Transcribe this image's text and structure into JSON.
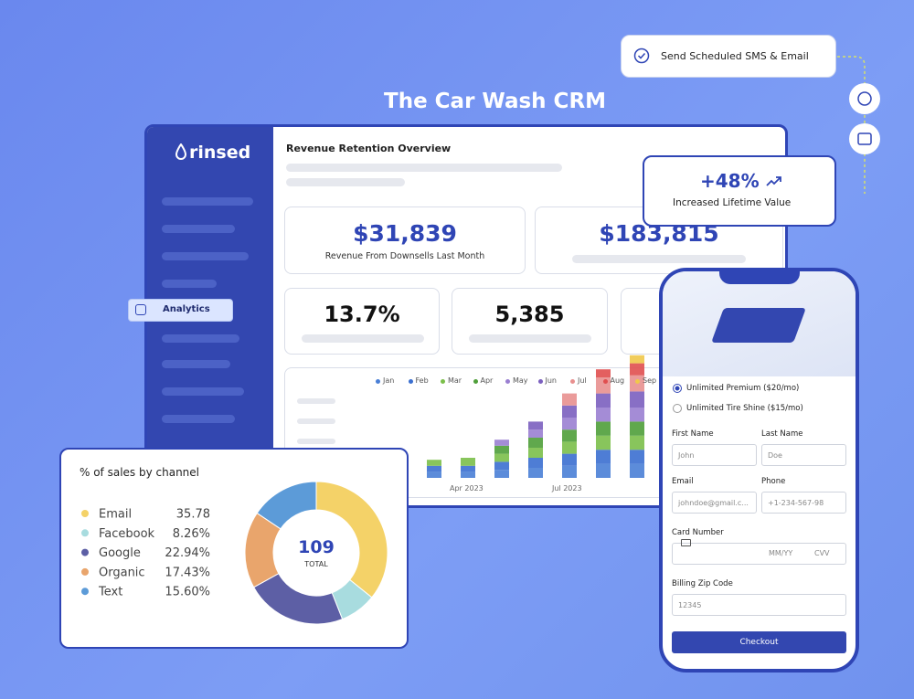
{
  "hero_title": "The Car Wash CRM",
  "notification": "Send Scheduled SMS & Email",
  "lifetime": {
    "value": "+48%",
    "label": "Increased Lifetime Value"
  },
  "sidebar": {
    "logo": "rinsed",
    "active": "Analytics"
  },
  "dashboard": {
    "title": "Revenue Retention Overview",
    "stats": [
      {
        "value": "$31,839",
        "label": "Revenue From Downsells Last Month"
      },
      {
        "value": "$183,815"
      }
    ],
    "kpis": [
      "13.7%",
      "5,385"
    ],
    "chart": {
      "legend": [
        {
          "name": "Jan",
          "color": "#4a7fd6"
        },
        {
          "name": "Feb",
          "color": "#3b6fd0"
        },
        {
          "name": "Mar",
          "color": "#7bbf4a"
        },
        {
          "name": "Apr",
          "color": "#4f9f3a"
        },
        {
          "name": "May",
          "color": "#9a7fd1"
        },
        {
          "name": "Jun",
          "color": "#7b5fbf"
        },
        {
          "name": "Jul",
          "color": "#e8908f"
        },
        {
          "name": "Aug",
          "color": "#e04f4f"
        },
        {
          "name": "Sep",
          "color": "#f0c84a"
        }
      ],
      "x_labels": [
        "Apr 2023",
        "Jul 2023"
      ]
    }
  },
  "chart_data": {
    "type": "donut",
    "title": "% of sales by channel",
    "categories": [
      "Email",
      "Facebook",
      "Google",
      "Organic",
      "Text"
    ],
    "values": [
      35.78,
      8.26,
      22.94,
      17.43,
      15.6
    ],
    "value_labels": [
      "35.78",
      "8.26%",
      "22.94%",
      "17.43%",
      "15.60%"
    ],
    "colors": [
      "#f4d268",
      "#a8dcdf",
      "#5d5fa5",
      "#e9a56c",
      "#5c9bd8"
    ],
    "center_value": "109",
    "center_label": "TOTAL"
  },
  "phone": {
    "plans": [
      "Unlimited Premium ($20/mo)",
      "Unlimited Tire Shine ($15/mo)"
    ],
    "fields": [
      {
        "label": "First Name",
        "placeholder": "John"
      },
      {
        "label": "Last Name",
        "placeholder": "Doe"
      },
      {
        "label": "Email",
        "placeholder": "johndoe@gmail.c..."
      },
      {
        "label": "Phone",
        "placeholder": "+1-234-567-98"
      }
    ],
    "card_label": "Card Number",
    "card_expiry": "MM/YY",
    "card_cvv": "CVV",
    "zip_label": "Billing Zip Code",
    "zip_placeholder": "12345",
    "button": "Checkout"
  }
}
